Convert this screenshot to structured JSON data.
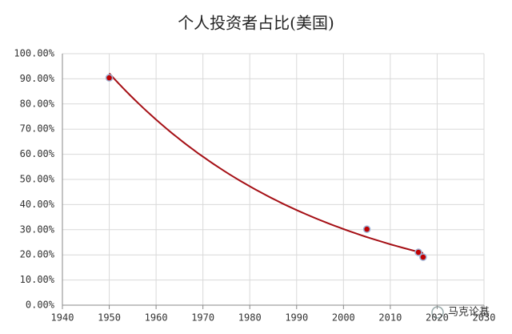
{
  "chart_data": {
    "type": "scatter",
    "title": "个人投资者占比(美国)",
    "series": [
      {
        "name": "个人投资者占比",
        "color": "#c00000",
        "x": [
          1950,
          2005,
          2016,
          2017
        ],
        "values": [
          90.4,
          30.2,
          21,
          19.1
        ]
      }
    ],
    "trendline": "exponential",
    "trendline_color": "#a50f15",
    "xlim": [
      1940,
      2030
    ],
    "xticks": [
      1940,
      1950,
      1960,
      1970,
      1980,
      1990,
      2000,
      2010,
      2020,
      2030
    ],
    "ylim": [
      0,
      100
    ],
    "yticks": [
      {
        "value": 0,
        "label": "0.00%"
      },
      {
        "value": 10,
        "label": "10.00%"
      },
      {
        "value": 20,
        "label": "20.00%"
      },
      {
        "value": 30,
        "label": "30.00%"
      },
      {
        "value": 40,
        "label": "40.00%"
      },
      {
        "value": 50,
        "label": "50.00%"
      },
      {
        "value": 60,
        "label": "60.00%"
      },
      {
        "value": 70,
        "label": "70.00%"
      },
      {
        "value": 80,
        "label": "80.00%"
      },
      {
        "value": 90,
        "label": "90.00%"
      },
      {
        "value": 100,
        "label": "100.00%"
      }
    ],
    "grid": true,
    "watermark": "马克论基"
  }
}
